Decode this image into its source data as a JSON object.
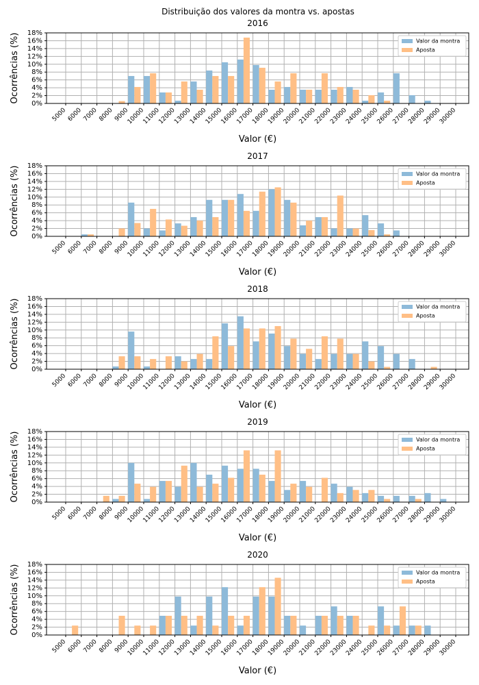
{
  "title": "Distribuição dos valores da montra vs. apostas",
  "chart_data": [
    {
      "type": "bar",
      "title": "2016",
      "x_label": "Valor (€)",
      "y_label": "Ocorrências (%)",
      "categories": [
        "5000",
        "6000",
        "7000",
        "8000",
        "9000",
        "10000",
        "11000",
        "12000",
        "13000",
        "14000",
        "15000",
        "16000",
        "17000",
        "18000",
        "19000",
        "20000",
        "21000",
        "22000",
        "23000",
        "24000",
        "25000",
        "26000",
        "27000",
        "28000",
        "29000",
        "30000"
      ],
      "series": [
        {
          "name": "Valor da montra",
          "color": "#8ebad9",
          "values": [
            0,
            0,
            0,
            0,
            7.0,
            7.0,
            2.8,
            0.7,
            5.6,
            8.4,
            10.5,
            11.2,
            9.8,
            3.5,
            4.2,
            3.5,
            3.5,
            3.5,
            4.2,
            0.7,
            2.8,
            7.7,
            2.1,
            0.7,
            0,
            0
          ]
        },
        {
          "name": "Aposta",
          "color": "#ffbf86",
          "values": [
            0,
            0,
            0,
            0.6,
            4.2,
            7.7,
            2.8,
            5.6,
            3.5,
            7.0,
            7.0,
            16.8,
            9.1,
            5.6,
            7.7,
            3.5,
            7.7,
            4.2,
            3.5,
            2.1,
            0.7,
            0,
            0,
            0,
            0,
            0
          ]
        }
      ],
      "ylim": [
        0,
        18
      ],
      "yticks": [
        {
          "value": 0,
          "label": "0%"
        },
        {
          "value": 2,
          "label": "2%"
        },
        {
          "value": 4,
          "label": "4%"
        },
        {
          "value": 6,
          "label": "6%"
        },
        {
          "value": 8,
          "label": "8%"
        },
        {
          "value": 10,
          "label": "10%"
        },
        {
          "value": 12,
          "label": "12%"
        },
        {
          "value": 14,
          "label": "14%"
        },
        {
          "value": 16,
          "label": "16%"
        },
        {
          "value": 18,
          "label": "18%"
        }
      ],
      "grid": true,
      "legend": "upper right"
    },
    {
      "type": "bar",
      "title": "2017",
      "x_label": "Valor (€)",
      "y_label": "Ocorrências (%)",
      "categories": [
        "5000",
        "6000",
        "7000",
        "8000",
        "9000",
        "10000",
        "11000",
        "12000",
        "13000",
        "14000",
        "15000",
        "16000",
        "17000",
        "18000",
        "19000",
        "20000",
        "21000",
        "22000",
        "23000",
        "24000",
        "25000",
        "26000",
        "27000",
        "28000",
        "29000",
        "30000"
      ],
      "series": [
        {
          "name": "Valor da montra",
          "color": "#8ebad9",
          "values": [
            0,
            0.5,
            0,
            0,
            8.6,
            2.0,
            1.5,
            3.3,
            4.9,
            9.3,
            9.3,
            10.8,
            6.5,
            12.0,
            9.3,
            2.8,
            4.9,
            2.0,
            2.0,
            5.4,
            3.3,
            1.5,
            0,
            0,
            0,
            0
          ]
        },
        {
          "name": "Aposta",
          "color": "#ffbf86",
          "values": [
            0,
            0.5,
            0,
            2.0,
            3.4,
            7.0,
            4.3,
            2.7,
            4.0,
            4.9,
            9.3,
            6.5,
            11.4,
            12.5,
            8.6,
            4.0,
            4.9,
            10.4,
            2.0,
            1.6,
            0.5,
            0,
            0,
            0,
            0,
            0
          ]
        }
      ],
      "ylim": [
        0,
        18
      ],
      "yticks": [
        {
          "value": 0,
          "label": "0%"
        },
        {
          "value": 2,
          "label": "2%"
        },
        {
          "value": 4,
          "label": "4%"
        },
        {
          "value": 6,
          "label": "6%"
        },
        {
          "value": 8,
          "label": "8%"
        },
        {
          "value": 10,
          "label": "10%"
        },
        {
          "value": 12,
          "label": "12%"
        },
        {
          "value": 14,
          "label": "14%"
        },
        {
          "value": 16,
          "label": "16%"
        },
        {
          "value": 18,
          "label": "18%"
        }
      ],
      "grid": true,
      "legend": "upper right"
    },
    {
      "type": "bar",
      "title": "2018",
      "x_label": "Valor (€)",
      "y_label": "Ocorrências (%)",
      "categories": [
        "5000",
        "6000",
        "7000",
        "8000",
        "9000",
        "10000",
        "11000",
        "12000",
        "13000",
        "14000",
        "15000",
        "16000",
        "17000",
        "18000",
        "19000",
        "20000",
        "21000",
        "22000",
        "23000",
        "24000",
        "25000",
        "26000",
        "27000",
        "28000",
        "29000",
        "30000"
      ],
      "series": [
        {
          "name": "Valor da montra",
          "color": "#8ebad9",
          "values": [
            0,
            0,
            0,
            0.7,
            9.6,
            0.7,
            0,
            3.3,
            2.6,
            2.6,
            11.7,
            13.5,
            7.1,
            9.1,
            5.9,
            3.9,
            2.6,
            3.9,
            3.9,
            7.1,
            5.9,
            3.9,
            2.6,
            0,
            0,
            0
          ]
        },
        {
          "name": "Aposta",
          "color": "#ffbf86",
          "values": [
            0,
            0,
            0,
            3.3,
            3.3,
            2.6,
            3.3,
            2.0,
            3.9,
            8.4,
            5.9,
            10.4,
            10.4,
            11.0,
            7.8,
            5.2,
            8.4,
            7.8,
            3.9,
            2.0,
            0.6,
            0,
            0,
            0.6,
            0,
            0
          ]
        }
      ],
      "ylim": [
        0,
        18
      ],
      "yticks": [
        {
          "value": 0,
          "label": "0%"
        },
        {
          "value": 2,
          "label": "2%"
        },
        {
          "value": 4,
          "label": "4%"
        },
        {
          "value": 6,
          "label": "6%"
        },
        {
          "value": 8,
          "label": "8%"
        },
        {
          "value": 10,
          "label": "10%"
        },
        {
          "value": 12,
          "label": "12%"
        },
        {
          "value": 14,
          "label": "14%"
        },
        {
          "value": 16,
          "label": "16%"
        },
        {
          "value": 18,
          "label": "18%"
        }
      ],
      "grid": true,
      "legend": "upper right"
    },
    {
      "type": "bar",
      "title": "2019",
      "x_label": "Valor (€)",
      "y_label": "Ocorrências (%)",
      "categories": [
        "5000",
        "6000",
        "7000",
        "8000",
        "9000",
        "10000",
        "11000",
        "12000",
        "13000",
        "14000",
        "15000",
        "16000",
        "17000",
        "18000",
        "19000",
        "20000",
        "21000",
        "22000",
        "23000",
        "24000",
        "25000",
        "26000",
        "27000",
        "28000",
        "29000",
        "30000"
      ],
      "series": [
        {
          "name": "Valor da montra",
          "color": "#8ebad9",
          "values": [
            0,
            0,
            0,
            0.8,
            10.0,
            0.8,
            5.4,
            3.9,
            10.0,
            7.0,
            9.3,
            8.5,
            8.5,
            5.4,
            3.1,
            5.4,
            0,
            4.7,
            3.9,
            2.3,
            1.6,
            1.6,
            1.6,
            2.3,
            0.8,
            0
          ]
        },
        {
          "name": "Aposta",
          "color": "#ffbf86",
          "values": [
            0,
            0,
            1.6,
            1.6,
            4.7,
            3.9,
            5.4,
            9.3,
            3.9,
            4.7,
            6.2,
            13.2,
            7.0,
            13.2,
            4.7,
            3.9,
            6.2,
            2.3,
            3.1,
            3.1,
            0.8,
            0,
            0.8,
            0,
            0,
            0
          ]
        }
      ],
      "ylim": [
        0,
        18
      ],
      "yticks": [
        {
          "value": 0,
          "label": "0%"
        },
        {
          "value": 2,
          "label": "2%"
        },
        {
          "value": 4,
          "label": "4%"
        },
        {
          "value": 6,
          "label": "6%"
        },
        {
          "value": 8,
          "label": "8%"
        },
        {
          "value": 10,
          "label": "10%"
        },
        {
          "value": 12,
          "label": "12%"
        },
        {
          "value": 14,
          "label": "14%"
        },
        {
          "value": 16,
          "label": "16%"
        },
        {
          "value": 18,
          "label": "18%"
        }
      ],
      "grid": true,
      "legend": "upper right"
    },
    {
      "type": "bar",
      "title": "2020",
      "x_label": "Valor (€)",
      "y_label": "Ocorrências (%)",
      "categories": [
        "5000",
        "6000",
        "7000",
        "8000",
        "9000",
        "10000",
        "11000",
        "12000",
        "13000",
        "14000",
        "15000",
        "16000",
        "17000",
        "18000",
        "19000",
        "20000",
        "21000",
        "22000",
        "23000",
        "24000",
        "25000",
        "26000",
        "27000",
        "28000",
        "29000",
        "30000"
      ],
      "series": [
        {
          "name": "Valor da montra",
          "color": "#8ebad9",
          "values": [
            0,
            0,
            0,
            0,
            0,
            0,
            4.9,
            9.8,
            2.4,
            9.8,
            12.2,
            2.4,
            9.8,
            9.8,
            4.9,
            2.4,
            4.9,
            7.3,
            4.9,
            0,
            7.3,
            2.4,
            2.4,
            2.4,
            0,
            0
          ]
        },
        {
          "name": "Aposta",
          "color": "#ffbf86",
          "values": [
            2.4,
            0,
            0,
            4.9,
            2.4,
            2.4,
            4.9,
            4.9,
            4.9,
            2.4,
            4.9,
            4.9,
            12.2,
            14.6,
            4.9,
            0,
            4.9,
            4.9,
            4.9,
            2.4,
            2.4,
            7.3,
            2.4,
            0,
            0,
            0
          ]
        }
      ],
      "ylim": [
        0,
        18
      ],
      "yticks": [
        {
          "value": 0,
          "label": "0%"
        },
        {
          "value": 2,
          "label": "2%"
        },
        {
          "value": 4,
          "label": "4%"
        },
        {
          "value": 6,
          "label": "6%"
        },
        {
          "value": 8,
          "label": "8%"
        },
        {
          "value": 10,
          "label": "10%"
        },
        {
          "value": 12,
          "label": "12%"
        },
        {
          "value": 14,
          "label": "14%"
        },
        {
          "value": 16,
          "label": "16%"
        },
        {
          "value": 18,
          "label": "18%"
        }
      ],
      "grid": true,
      "legend": "upper right"
    }
  ]
}
